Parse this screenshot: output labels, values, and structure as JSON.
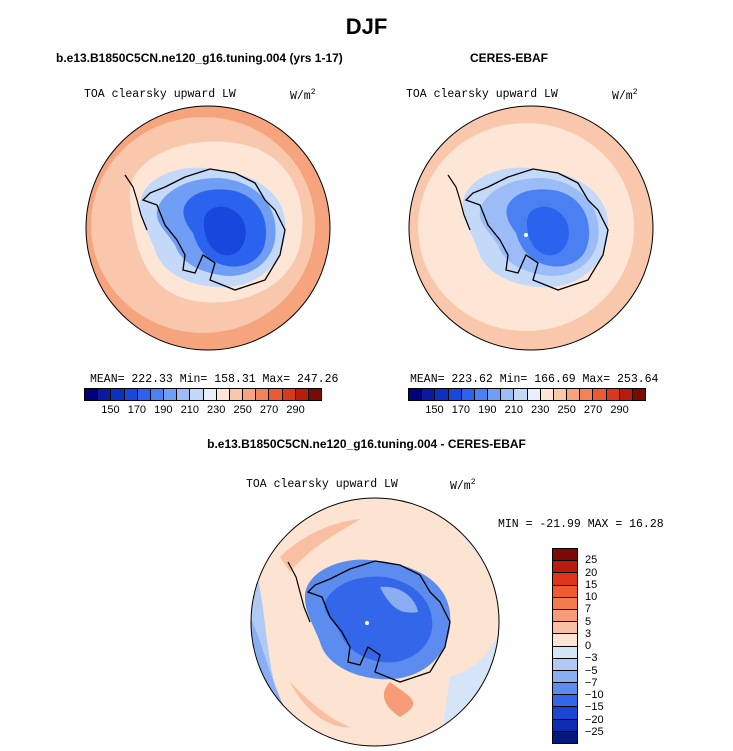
{
  "title": "DJF",
  "panels": {
    "model": {
      "title": "b.e13.B1850C5CN.ne120_g16.tuning.004 (yrs 1-17)",
      "variable": "TOA clearsky upward LW",
      "units": "W/m",
      "units_sup": "2",
      "stats": "MEAN= 222.33   Min= 158.31   Max= 247.26"
    },
    "obs": {
      "title": "CERES-EBAF",
      "variable": "TOA clearsky upward LW",
      "units": "W/m",
      "units_sup": "2",
      "stats": "MEAN= 223.62   Min= 166.69   Max= 253.64"
    },
    "diff": {
      "title": "b.e13.B1850C5CN.ne120_g16.tuning.004 - CERES-EBAF",
      "variable": "TOA clearsky upward LW",
      "units": "W/m",
      "units_sup": "2",
      "stats": "MIN = -21.99 MAX =  16.28"
    }
  },
  "colorbar_abs": {
    "labels": [
      "150",
      "170",
      "190",
      "210",
      "230",
      "250",
      "270",
      "290"
    ],
    "colors": [
      "#00007a",
      "#0a1a9e",
      "#0d2fc2",
      "#1747dc",
      "#2b63ee",
      "#4a80f2",
      "#6f9ef4",
      "#9bbcf6",
      "#c4d8f8",
      "#e8f0fb",
      "#fde6d6",
      "#f9c7ab",
      "#f5a47e",
      "#f1825a",
      "#ec5a34",
      "#d9381c",
      "#b81c0c",
      "#7a0a05"
    ]
  },
  "colorbar_diff": {
    "labels": [
      "25",
      "20",
      "15",
      "10",
      "7",
      "5",
      "3",
      "0",
      "−3",
      "−5",
      "−7",
      "−10",
      "−15",
      "−20",
      "−25"
    ],
    "colors": [
      "#7a0a05",
      "#b81c0c",
      "#e0341a",
      "#f05a30",
      "#f47a50",
      "#f79c78",
      "#f9bfa2",
      "#fde3d2",
      "#d6e4f8",
      "#b0caf5",
      "#8aaef2",
      "#5c8cee",
      "#3366e8",
      "#1a46d6",
      "#0d2cb0",
      "#07187c"
    ]
  }
}
